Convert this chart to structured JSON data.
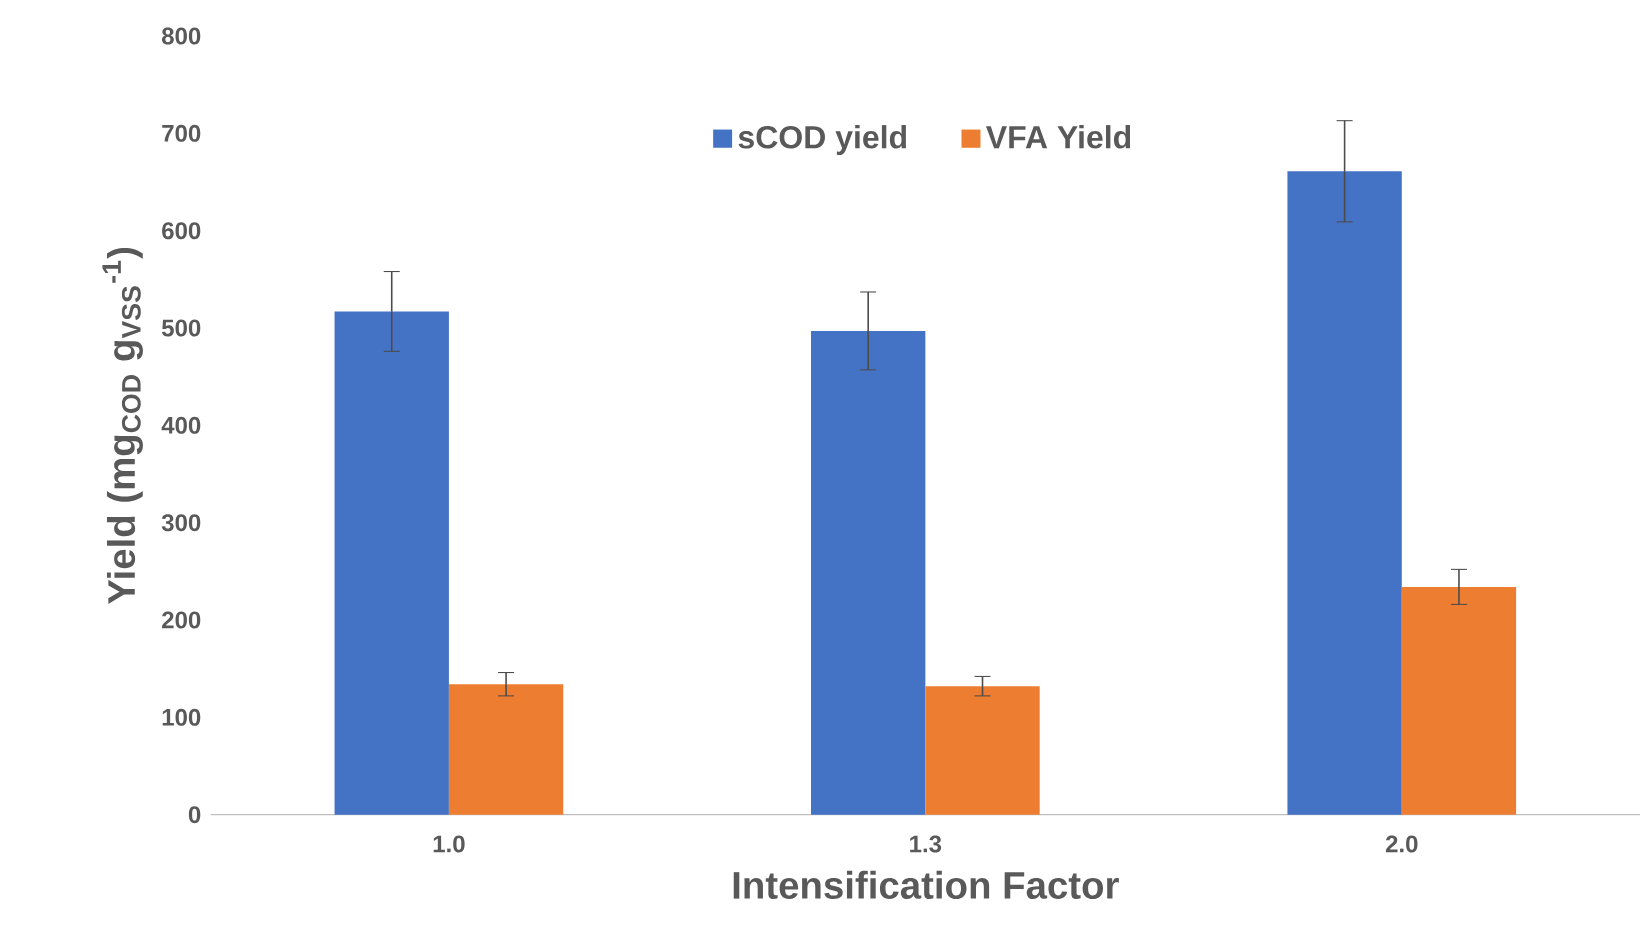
{
  "chart_data": {
    "type": "bar",
    "xlabel": "Intensification Factor",
    "ylabel": "Yield (mg$_{COD}$ g$_{VSS}$$^{-1}$)",
    "categories": [
      "1.0",
      "1.3",
      "2.0"
    ],
    "series": [
      {
        "name": "sCOD yield",
        "color": "#4472c4",
        "values": [
          517,
          497,
          661
        ],
        "errors": [
          41,
          40,
          52
        ]
      },
      {
        "name": "VFA Yield",
        "color": "#ed7d31",
        "values": [
          134,
          132,
          234
        ],
        "errors": [
          12,
          10,
          18
        ]
      }
    ],
    "ylim": [
      0,
      800
    ],
    "yticks": [
      0,
      100,
      200,
      300,
      400,
      500,
      600,
      700,
      800
    ],
    "grid": false,
    "legend": "top"
  }
}
